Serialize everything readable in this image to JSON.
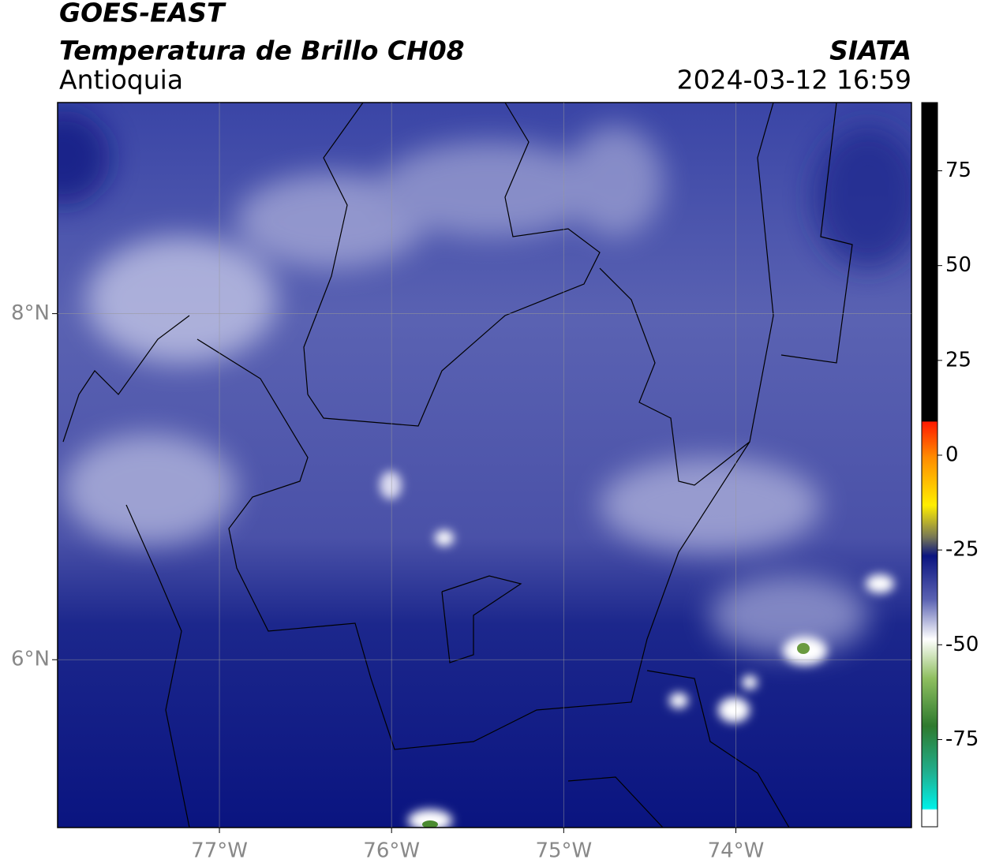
{
  "header": {
    "satellite": "GOES-EAST",
    "product": "Temperatura de Brillo CH08",
    "region": "Antioquia",
    "source": "SIATA",
    "datetime": "2024-03-12 16:59"
  },
  "map": {
    "xlim": [
      -77.94,
      -72.98
    ],
    "ylim": [
      5.03,
      9.22
    ],
    "xticks": [
      {
        "value": -77,
        "label": "77°W"
      },
      {
        "value": -76,
        "label": "76°W"
      },
      {
        "value": -75,
        "label": "75°W"
      },
      {
        "value": -74,
        "label": "74°W"
      }
    ],
    "yticks": [
      {
        "value": 8,
        "label": "8°N"
      },
      {
        "value": 6,
        "label": "6°N"
      }
    ],
    "grid": true
  },
  "colorbar": {
    "lim": [
      -98,
      93
    ],
    "ticks": [
      75,
      50,
      25,
      0,
      -25,
      -50,
      -75
    ]
  }
}
